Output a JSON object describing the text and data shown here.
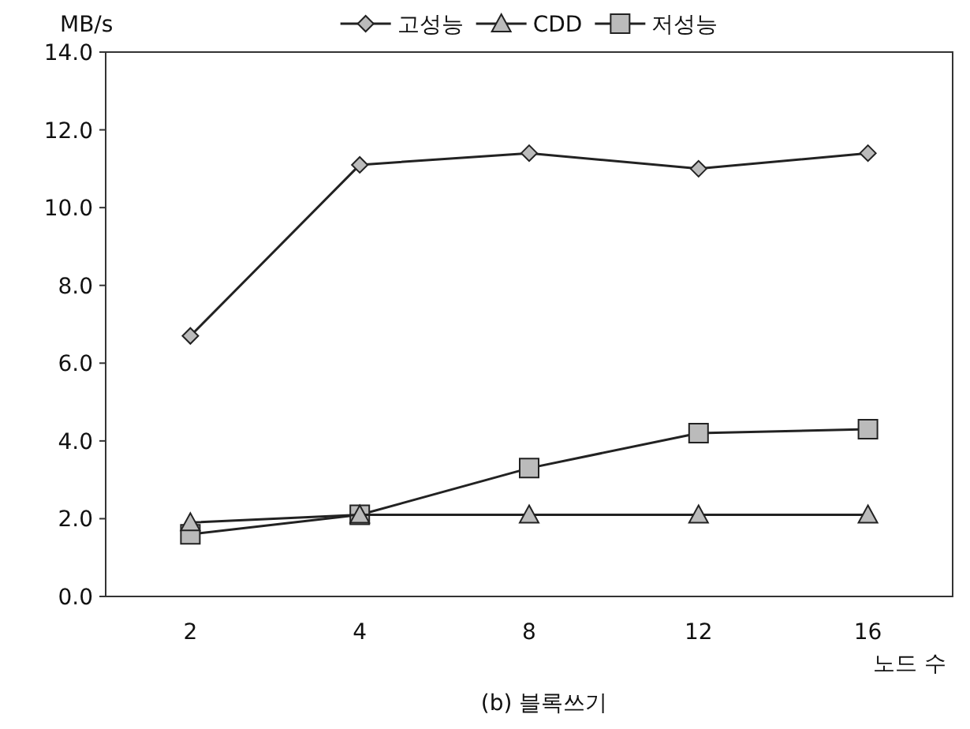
{
  "chart_data": {
    "type": "line",
    "title": "(b) 블록쓰기",
    "xlabel": "노드 수",
    "ylabel": "MB/s",
    "categories": [
      "2",
      "4",
      "8",
      "12",
      "16"
    ],
    "ylim": [
      0,
      14
    ],
    "yticks": [
      {
        "value": 0,
        "label": "0.0"
      },
      {
        "value": 2,
        "label": "2.0"
      },
      {
        "value": 4,
        "label": "4.0"
      },
      {
        "value": 6,
        "label": "6.0"
      },
      {
        "value": 8,
        "label": "8.0"
      },
      {
        "value": 10,
        "label": "10.0"
      },
      {
        "value": 12,
        "label": "12.0"
      },
      {
        "value": 14,
        "label": "14.0"
      }
    ],
    "grid": false,
    "legend": "top",
    "line_style": "solid",
    "series": [
      {
        "name": "고성능",
        "color": "#222222",
        "marker": "diamond",
        "values": [
          6.7,
          11.1,
          11.4,
          11.0,
          11.4
        ]
      },
      {
        "name": "CDD",
        "color": "#222222",
        "marker": "triangle",
        "values": [
          1.9,
          2.1,
          2.1,
          2.1,
          2.1
        ]
      },
      {
        "name": "저성능",
        "color": "#222222",
        "marker": "square",
        "values": [
          1.6,
          2.1,
          3.3,
          4.2,
          4.3
        ]
      }
    ]
  }
}
